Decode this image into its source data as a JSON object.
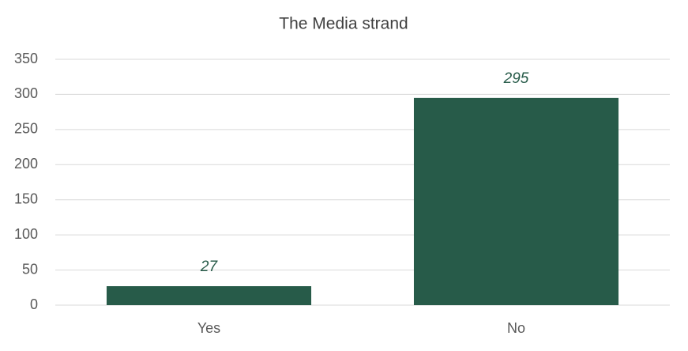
{
  "chart_data": {
    "type": "bar",
    "title": "The Media strand",
    "categories": [
      "Yes",
      "No"
    ],
    "values": [
      27,
      295
    ],
    "color": "#275b49",
    "ylim": [
      0,
      350
    ],
    "yticks": [
      0,
      50,
      100,
      150,
      200,
      250,
      300,
      350
    ],
    "grid": true
  }
}
